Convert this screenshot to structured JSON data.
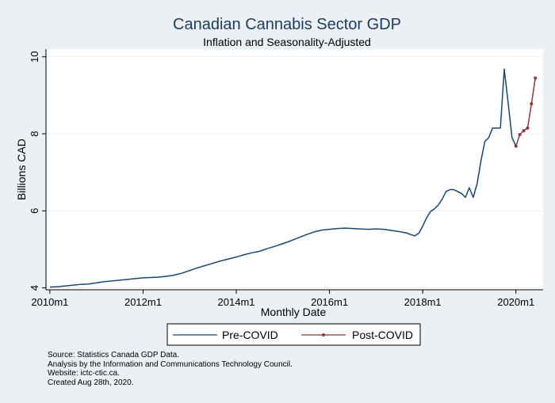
{
  "chart_data": {
    "type": "line",
    "title": "Canadian Cannabis Sector GDP",
    "subtitle": "Inflation and Seasonality-Adjusted",
    "xlabel": "Monthly Date",
    "ylabel": "Billions CAD",
    "ylim": [
      3.95,
      10.2
    ],
    "yticks": [
      4,
      6,
      8,
      10
    ],
    "xticks": [
      {
        "label": "2010m1",
        "value": 0
      },
      {
        "label": "2012m1",
        "value": 24
      },
      {
        "label": "2014m1",
        "value": 48
      },
      {
        "label": "2016m1",
        "value": 72
      },
      {
        "label": "2018m1",
        "value": 96
      },
      {
        "label": "2020m1",
        "value": 120
      }
    ],
    "xlim": [
      -1,
      127
    ],
    "grid": true,
    "legend_position": "bottom",
    "series": [
      {
        "name": "Pre-COVID",
        "color": "#1a476f",
        "markers": false,
        "points": [
          [
            0,
            4.02
          ],
          [
            2,
            4.03
          ],
          [
            4,
            4.05
          ],
          [
            6,
            4.07
          ],
          [
            8,
            4.09
          ],
          [
            10,
            4.1
          ],
          [
            12,
            4.13
          ],
          [
            14,
            4.16
          ],
          [
            16,
            4.18
          ],
          [
            18,
            4.2
          ],
          [
            20,
            4.22
          ],
          [
            22,
            4.24
          ],
          [
            24,
            4.26
          ],
          [
            26,
            4.27
          ],
          [
            28,
            4.28
          ],
          [
            30,
            4.3
          ],
          [
            32,
            4.33
          ],
          [
            34,
            4.38
          ],
          [
            36,
            4.45
          ],
          [
            38,
            4.52
          ],
          [
            40,
            4.58
          ],
          [
            42,
            4.64
          ],
          [
            44,
            4.7
          ],
          [
            46,
            4.75
          ],
          [
            48,
            4.8
          ],
          [
            50,
            4.86
          ],
          [
            52,
            4.91
          ],
          [
            54,
            4.95
          ],
          [
            56,
            5.02
          ],
          [
            58,
            5.08
          ],
          [
            60,
            5.15
          ],
          [
            62,
            5.22
          ],
          [
            64,
            5.3
          ],
          [
            66,
            5.38
          ],
          [
            68,
            5.45
          ],
          [
            70,
            5.5
          ],
          [
            72,
            5.52
          ],
          [
            74,
            5.54
          ],
          [
            76,
            5.55
          ],
          [
            78,
            5.54
          ],
          [
            80,
            5.53
          ],
          [
            82,
            5.52
          ],
          [
            84,
            5.53
          ],
          [
            86,
            5.52
          ],
          [
            88,
            5.49
          ],
          [
            90,
            5.46
          ],
          [
            91,
            5.44
          ],
          [
            92,
            5.42
          ],
          [
            93,
            5.38
          ],
          [
            94,
            5.35
          ],
          [
            95,
            5.42
          ],
          [
            96,
            5.6
          ],
          [
            97,
            5.82
          ],
          [
            98,
            5.98
          ],
          [
            99,
            6.05
          ],
          [
            100,
            6.15
          ],
          [
            101,
            6.3
          ],
          [
            102,
            6.5
          ],
          [
            103,
            6.55
          ],
          [
            104,
            6.55
          ],
          [
            105,
            6.5
          ],
          [
            106,
            6.45
          ],
          [
            107,
            6.35
          ],
          [
            108,
            6.6
          ],
          [
            109,
            6.35
          ],
          [
            110,
            6.7
          ],
          [
            111,
            7.3
          ],
          [
            112,
            7.8
          ],
          [
            113,
            7.9
          ],
          [
            114,
            8.15
          ],
          [
            115,
            8.15
          ],
          [
            116,
            8.15
          ],
          [
            117,
            9.68
          ],
          [
            118,
            8.8
          ],
          [
            119,
            7.9
          ],
          [
            120,
            7.68
          ]
        ]
      },
      {
        "name": "Post-COVID",
        "color": "#90353b",
        "markers": true,
        "points": [
          [
            120,
            7.68
          ],
          [
            121,
            7.98
          ],
          [
            122,
            8.08
          ],
          [
            123,
            8.15
          ],
          [
            124,
            8.78
          ],
          [
            125,
            9.45
          ]
        ]
      }
    ]
  },
  "notes": {
    "source": "Source: Statistics Canada GDP Data.",
    "analysis": "Analysis by the Information and Communications Technology Council.",
    "website": "Website: ictc-ctic.ca.",
    "created": "Created Aug 28th, 2020."
  }
}
